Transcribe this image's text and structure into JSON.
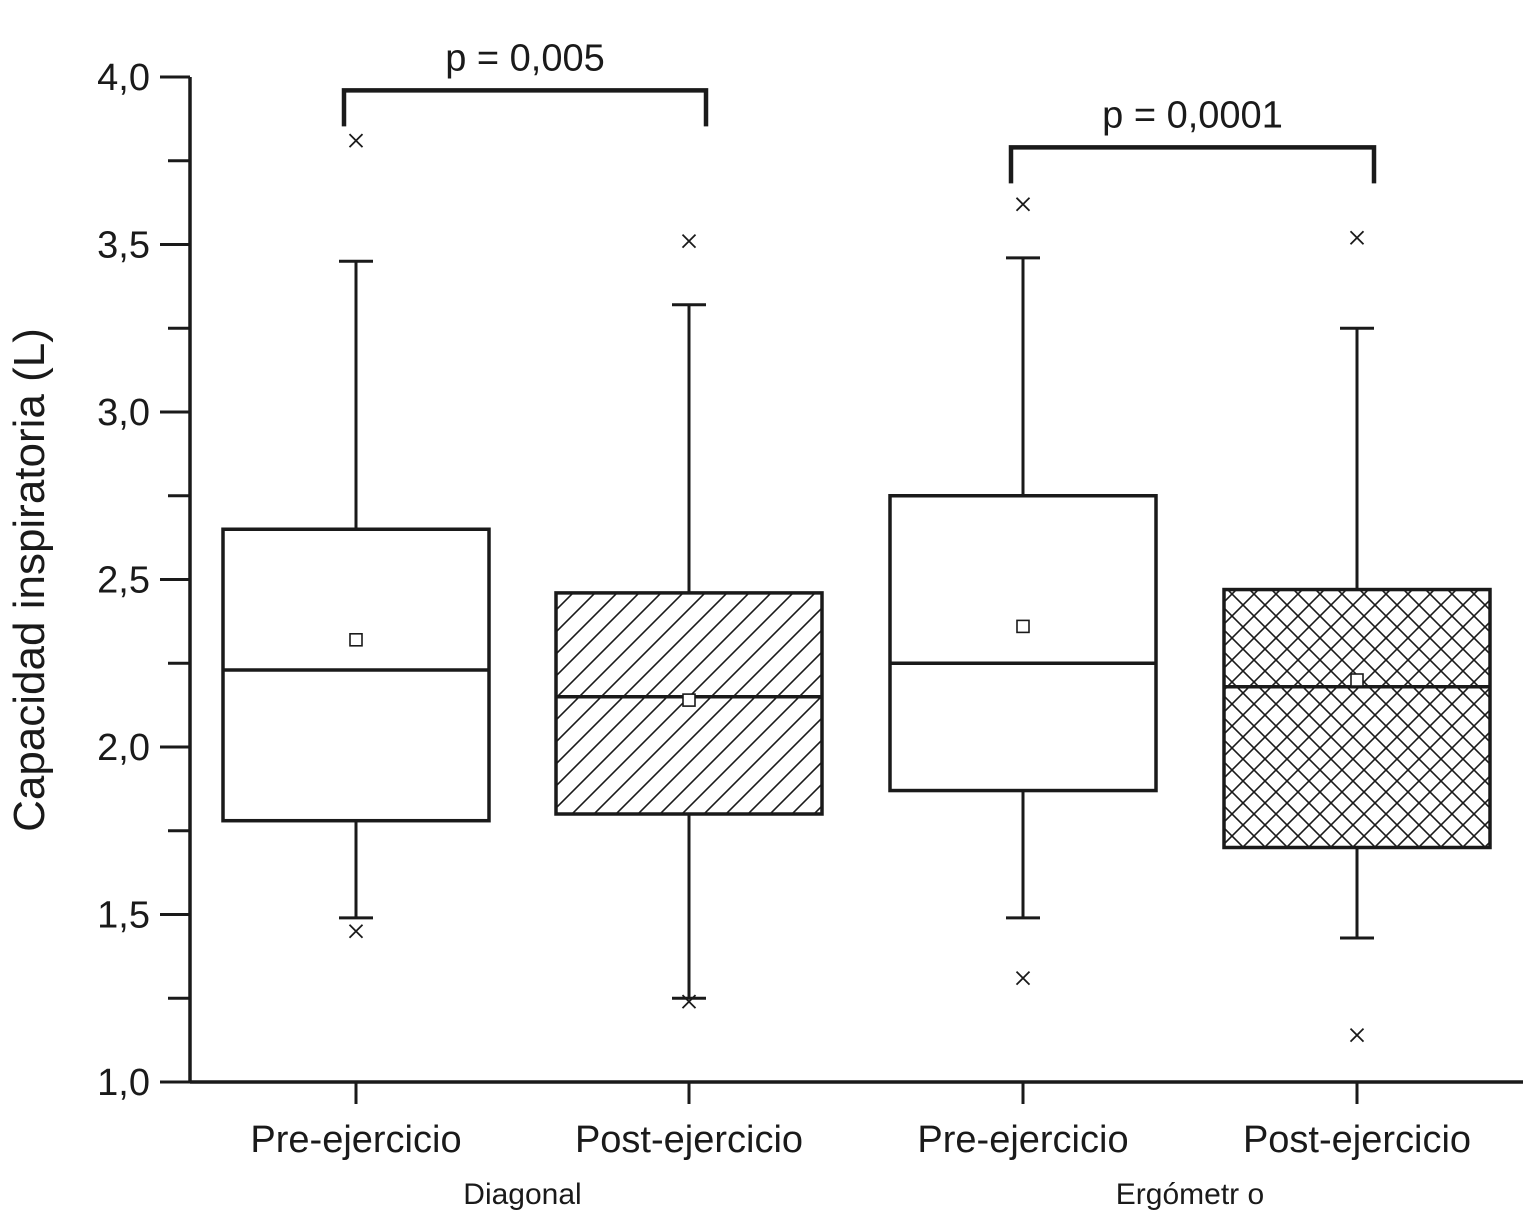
{
  "chart_data": {
    "type": "box",
    "ylabel": "Capacidad inspiratoria (L)",
    "ylim": [
      1.0,
      4.0
    ],
    "y_ticks": [
      "1,0",
      "1,5",
      "2,0",
      "2,5",
      "3,0",
      "3,5",
      "4,0"
    ],
    "y_tick_values": [
      1.0,
      1.5,
      2.0,
      2.5,
      3.0,
      3.5,
      4.0
    ],
    "categories": [
      "Pre-ejercicio",
      "Post-ejercicio",
      "Pre-ejercicio",
      "Post-ejercicio"
    ],
    "groups": [
      {
        "label": "Diagonal"
      },
      {
        "label": "Ergómetr o"
      }
    ],
    "boxes": [
      {
        "whisker_low": 1.49,
        "q1": 1.78,
        "median": 2.23,
        "q3": 2.65,
        "whisker_high": 3.45,
        "mean": 2.32,
        "outliers": [
          3.81,
          1.45
        ],
        "fill": "none"
      },
      {
        "whisker_low": 1.25,
        "q1": 1.8,
        "median": 2.15,
        "q3": 2.46,
        "whisker_high": 3.32,
        "mean": 2.14,
        "outliers": [
          3.51,
          1.24
        ],
        "fill": "diagonal-hatch"
      },
      {
        "whisker_low": 1.49,
        "q1": 1.87,
        "median": 2.25,
        "q3": 2.75,
        "whisker_high": 3.46,
        "mean": 2.36,
        "outliers": [
          3.62,
          1.31
        ],
        "fill": "none"
      },
      {
        "whisker_low": 1.43,
        "q1": 1.7,
        "median": 2.18,
        "q3": 2.47,
        "whisker_high": 3.25,
        "mean": 2.2,
        "outliers": [
          3.52,
          1.14
        ],
        "fill": "cross-hatch"
      }
    ],
    "annotations": [
      {
        "text": "p = 0,005",
        "from_box": 0,
        "to_box": 1,
        "y": 3.96
      },
      {
        "text": "p = 0,0001",
        "from_box": 2,
        "to_box": 3,
        "y": 3.79
      }
    ],
    "colors": {
      "ink": "#1a1a1a",
      "background": "#ffffff"
    }
  }
}
